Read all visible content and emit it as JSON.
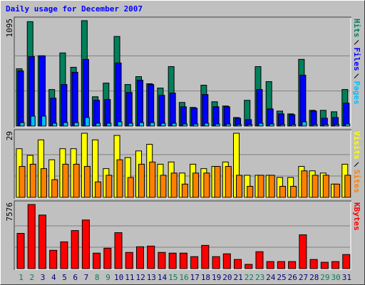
{
  "title": "Daily usage for December 2007",
  "chart_data": [
    {
      "type": "bar",
      "ylim": [
        0,
        1095
      ],
      "series": [
        {
          "name": "Hits",
          "color": "#00805c",
          "values": [
            596,
            1085,
            730,
            380,
            760,
            611,
            1095,
            305,
            447,
            931,
            432,
            514,
            440,
            395,
            618,
            246,
            194,
            425,
            253,
            209,
            89,
            268,
            618,
            462,
            156,
            127,
            693,
            164,
            164,
            149,
            380
          ]
        },
        {
          "name": "Files",
          "color": "#0000ff",
          "values": [
            574,
            723,
            730,
            290,
            432,
            559,
            693,
            268,
            276,
            656,
            350,
            477,
            432,
            320,
            343,
            201,
            186,
            328,
            201,
            201,
            82,
            67,
            380,
            179,
            127,
            119,
            529,
            156,
            82,
            89,
            238
          ]
        },
        {
          "name": "Pages",
          "color": "#00c0ff",
          "values": [
            37,
            104,
            104,
            30,
            37,
            37,
            90,
            30,
            30,
            45,
            30,
            37,
            37,
            30,
            30,
            22,
            22,
            30,
            22,
            22,
            15,
            15,
            30,
            22,
            15,
            15,
            45,
            15,
            15,
            15,
            22
          ]
        }
      ]
    },
    {
      "type": "bar",
      "ylim": [
        0,
        29
      ],
      "series": [
        {
          "name": "Visits",
          "color": "#ffff00",
          "values": [
            22,
            19,
            26,
            17,
            22,
            22,
            29,
            26,
            13,
            28,
            18,
            21,
            24,
            15,
            16,
            11,
            15,
            13,
            14,
            16,
            29,
            10,
            10,
            10,
            9,
            9,
            14,
            12,
            11,
            6,
            15
          ]
        },
        {
          "name": "Sites",
          "color": "#ff8000",
          "values": [
            14,
            15,
            13,
            8,
            15,
            15,
            14,
            7,
            10,
            17,
            9,
            15,
            16,
            10,
            11,
            6,
            11,
            11,
            14,
            14,
            10,
            5,
            10,
            10,
            5,
            5,
            12,
            10,
            10,
            6,
            10
          ]
        }
      ]
    },
    {
      "type": "bar",
      "ylim": [
        0,
        7576
      ],
      "categories": [
        "1",
        "2",
        "3",
        "4",
        "5",
        "6",
        "7",
        "8",
        "9",
        "10",
        "11",
        "12",
        "13",
        "14",
        "15",
        "16",
        "17",
        "18",
        "19",
        "20",
        "21",
        "22",
        "23",
        "24",
        "25",
        "26",
        "27",
        "28",
        "29",
        "30",
        "31"
      ],
      "category_colors": [
        "#00805c",
        "#00805c",
        "#000080",
        "#000080",
        "#000080",
        "#000080",
        "#000080",
        "#00805c",
        "#00805c",
        "#000080",
        "#000080",
        "#000080",
        "#000080",
        "#000080",
        "#00805c",
        "#00805c",
        "#000080",
        "#000080",
        "#000080",
        "#000080",
        "#000080",
        "#00805c",
        "#00805c",
        "#000080",
        "#000080",
        "#000080",
        "#000080",
        "#000080",
        "#00805c",
        "#00805c",
        "#000080"
      ],
      "series": [
        {
          "name": "KBytes",
          "color": "#ff0000",
          "values": [
            4163,
            7576,
            6327,
            2165,
            3164,
            4496,
            5745,
            1832,
            2414,
            4246,
            1915,
            2581,
            2664,
            1915,
            1832,
            1832,
            1415,
            2747,
            1415,
            1748,
            1082,
            500,
            1998,
            833,
            833,
            833,
            3996,
            1082,
            749,
            833,
            1665
          ]
        }
      ]
    }
  ]
}
